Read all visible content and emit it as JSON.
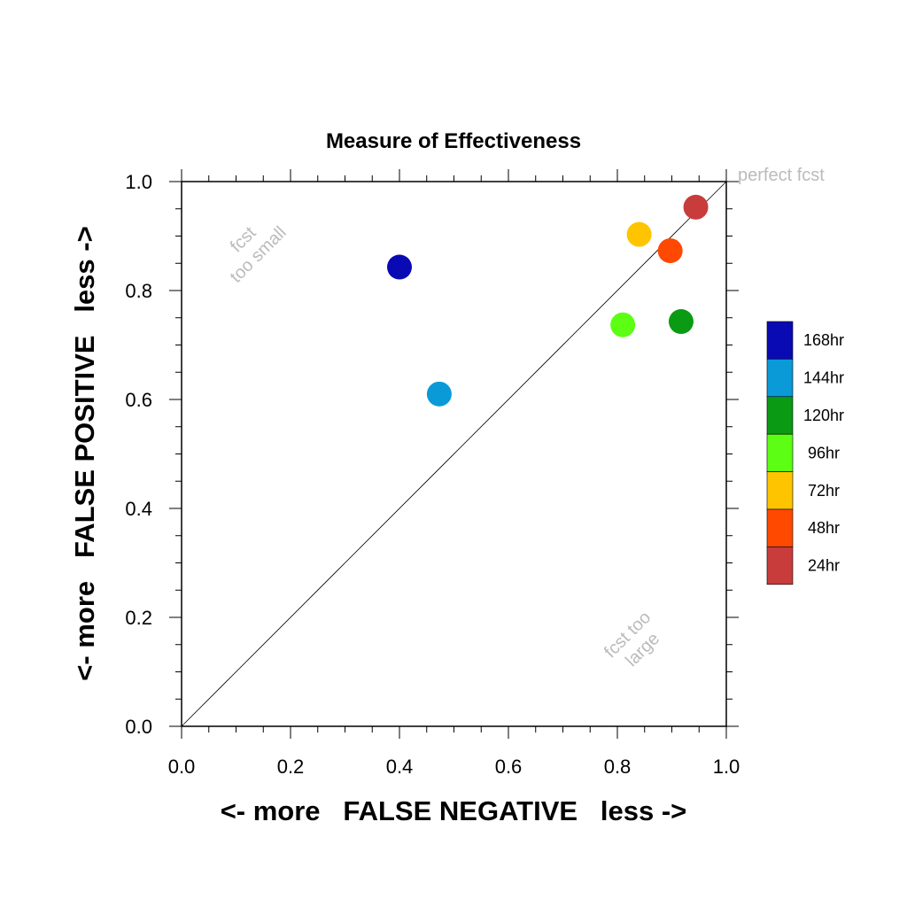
{
  "chart_data": {
    "type": "scatter",
    "title": "Measure of Effectiveness",
    "xlabel": "<- more   FALSE NEGATIVE   less ->",
    "ylabel": "<- more   FALSE POSITIVE   less ->",
    "xlim": [
      0,
      1
    ],
    "ylim": [
      0,
      1
    ],
    "x_ticks": [
      "0.0",
      "0.2",
      "0.4",
      "0.6",
      "0.8",
      "1.0"
    ],
    "y_ticks": [
      "0.0",
      "0.2",
      "0.4",
      "0.6",
      "0.8",
      "1.0"
    ],
    "grid": false,
    "diagonal_line": true,
    "annotations": {
      "top_right": "perfect fcst",
      "upper_left": [
        "fcst",
        "too small"
      ],
      "lower_right": [
        "fcst too",
        "large"
      ]
    },
    "legend_position": "right",
    "series": [
      {
        "name": "168hr",
        "color": "#0a0ab4",
        "x": 0.4,
        "y": 0.843
      },
      {
        "name": "144hr",
        "color": "#0a9ad8",
        "x": 0.473,
        "y": 0.61
      },
      {
        "name": "120hr",
        "color": "#0a9a14",
        "x": 0.917,
        "y": 0.743
      },
      {
        "name": "96hr",
        "color": "#5cff14",
        "x": 0.81,
        "y": 0.737
      },
      {
        "name": "72hr",
        "color": "#ffc400",
        "x": 0.84,
        "y": 0.903
      },
      {
        "name": "48hr",
        "color": "#ff4800",
        "x": 0.897,
        "y": 0.873
      },
      {
        "name": "24hr",
        "color": "#c83c3c",
        "x": 0.944,
        "y": 0.953
      }
    ]
  }
}
